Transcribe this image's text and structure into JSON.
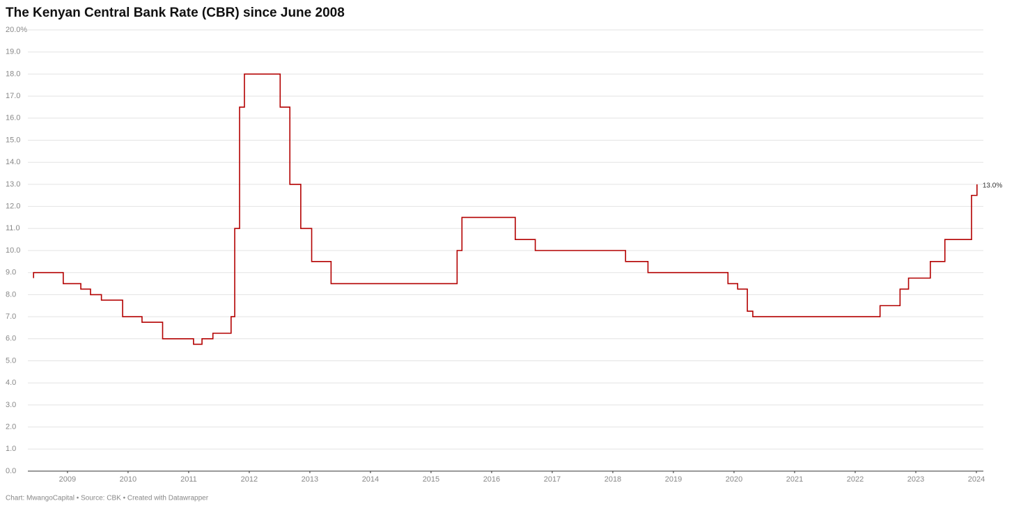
{
  "chart_data": {
    "type": "line",
    "title": "The Kenyan Central Bank Rate (CBR) since June 2008",
    "source": "Chart: MwangoCapital • Source: CBK • Created with Datawrapper",
    "color": "#b30000",
    "grid": true,
    "x": [
      2008.44,
      2008.44,
      2008.93,
      2008.93,
      2009.22,
      2009.22,
      2009.38,
      2009.38,
      2009.56,
      2009.56,
      2009.91,
      2009.91,
      2010.23,
      2010.23,
      2010.57,
      2010.57,
      2011.08,
      2011.08,
      2011.22,
      2011.22,
      2011.4,
      2011.4,
      2011.7,
      2011.7,
      2011.76,
      2011.76,
      2011.84,
      2011.84,
      2011.92,
      2011.92,
      2012.51,
      2012.51,
      2012.67,
      2012.67,
      2012.85,
      2012.85,
      2013.03,
      2013.03,
      2013.35,
      2013.35,
      2015.43,
      2015.43,
      2015.51,
      2015.51,
      2016.39,
      2016.39,
      2016.72,
      2016.72,
      2018.21,
      2018.21,
      2018.58,
      2018.58,
      2019.9,
      2019.9,
      2020.06,
      2020.06,
      2020.22,
      2020.22,
      2020.31,
      2020.31,
      2022.41,
      2022.41,
      2022.74,
      2022.74,
      2022.88,
      2022.88,
      2023.24,
      2023.24,
      2023.48,
      2023.48,
      2023.92,
      2023.92,
      2024.01,
      2024.01
    ],
    "values": [
      8.75,
      9,
      9,
      8.5,
      8.5,
      8.25,
      8.25,
      8,
      8,
      7.75,
      7.75,
      7,
      7,
      6.75,
      6.75,
      6,
      6,
      5.75,
      5.75,
      6,
      6,
      6.25,
      6.25,
      7,
      7,
      11,
      11,
      16.5,
      16.5,
      18,
      18,
      16.5,
      16.5,
      13,
      13,
      11,
      11,
      9.5,
      9.5,
      8.5,
      8.5,
      10,
      10,
      11.5,
      11.5,
      10.5,
      10.5,
      10,
      10,
      9.5,
      9.5,
      9,
      9,
      8.5,
      8.5,
      8.25,
      8.25,
      7.25,
      7.25,
      7,
      7,
      7.5,
      7.5,
      8.25,
      8.25,
      8.75,
      8.75,
      9.5,
      9.5,
      10.5,
      10.5,
      12.5,
      12.5,
      13
    ],
    "value_labels": [
      null,
      null,
      null,
      null,
      null,
      null,
      null,
      null,
      null,
      null,
      null,
      null,
      null,
      null,
      null,
      null,
      null,
      null,
      null,
      null,
      null,
      null,
      null,
      null,
      null,
      null,
      null,
      null,
      null,
      null,
      null,
      null,
      null,
      null,
      null,
      null,
      null,
      null,
      null,
      null,
      null,
      null,
      null,
      null,
      null,
      null,
      null,
      null,
      null,
      null,
      null,
      null,
      null,
      null,
      null,
      null,
      null,
      null,
      null,
      null,
      null,
      null,
      null,
      null,
      null,
      null,
      null,
      null,
      null,
      null,
      null,
      null,
      null,
      "13.0%"
    ],
    "xlim": [
      2008.346,
      2024.115
    ],
    "xticks": [
      2009,
      2010,
      2011,
      2012,
      2013,
      2014,
      2015,
      2016,
      2017,
      2018,
      2019,
      2020,
      2021,
      2022,
      2023,
      2024
    ],
    "ylim": [
      0,
      20
    ],
    "yticks": [
      {
        "value": 0,
        "label": "0.0"
      },
      {
        "value": 1,
        "label": "1.0"
      },
      {
        "value": 2,
        "label": "2.0"
      },
      {
        "value": 3,
        "label": "3.0"
      },
      {
        "value": 4,
        "label": "4.0"
      },
      {
        "value": 5,
        "label": "5.0"
      },
      {
        "value": 6,
        "label": "6.0"
      },
      {
        "value": 7,
        "label": "7.0"
      },
      {
        "value": 8,
        "label": "8.0"
      },
      {
        "value": 9,
        "label": "9.0"
      },
      {
        "value": 10,
        "label": "10.0"
      },
      {
        "value": 11,
        "label": "11.0"
      },
      {
        "value": 12,
        "label": "12.0"
      },
      {
        "value": 13,
        "label": "13.0"
      },
      {
        "value": 14,
        "label": "14.0"
      },
      {
        "value": 15,
        "label": "15.0"
      },
      {
        "value": 16,
        "label": "16.0"
      },
      {
        "value": 17,
        "label": "17.0"
      },
      {
        "value": 18,
        "label": "18.0"
      },
      {
        "value": 19,
        "label": "19.0"
      },
      {
        "value": 20,
        "label": "20.0%"
      }
    ]
  }
}
